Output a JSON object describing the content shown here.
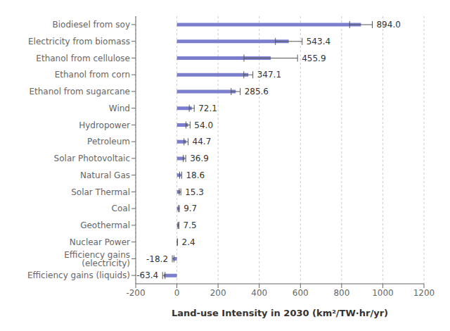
{
  "chart_data": {
    "type": "bar",
    "orientation": "horizontal",
    "categories": [
      "Biodiesel from soy",
      "Electricity from biomass",
      "Ethanol from cellulose",
      "Ethanol from corn",
      "Ethanol from sugarcane",
      "Wind",
      "Hydropower",
      "Petroleum",
      "Solar Photovoltaic",
      "Natural Gas",
      "Solar Thermal",
      "Coal",
      "Geothermal",
      "Nuclear Power",
      "Efficiency gains (electricity)",
      "Efficiency gains (liquids)"
    ],
    "values": [
      894.0,
      543.4,
      455.9,
      347.1,
      285.6,
      72.1,
      54.0,
      44.7,
      36.9,
      18.6,
      15.3,
      9.7,
      7.5,
      2.4,
      -18.2,
      -63.4
    ],
    "value_labels": [
      "894.0",
      "543.4",
      "455.9",
      "347.1",
      "285.6",
      "72.1",
      "54.0",
      "44.7",
      "36.9",
      "18.6",
      "15.3",
      "9.7",
      "7.5",
      "2.4",
      "-18.2",
      "-63.4"
    ],
    "error_bars": [
      55,
      65,
      130,
      22,
      22,
      12,
      10,
      10,
      6,
      5,
      4,
      2.5,
      2.5,
      1,
      4,
      6
    ],
    "color": "#7B7ECC",
    "xlabel": "Land-use Intensity in 2030  (km²/TW·hr/yr)",
    "xlim": [
      -200,
      1200
    ],
    "xticks": [
      -200,
      0,
      200,
      400,
      600,
      800,
      1000,
      1200
    ],
    "grid": true,
    "data_labels": true
  }
}
